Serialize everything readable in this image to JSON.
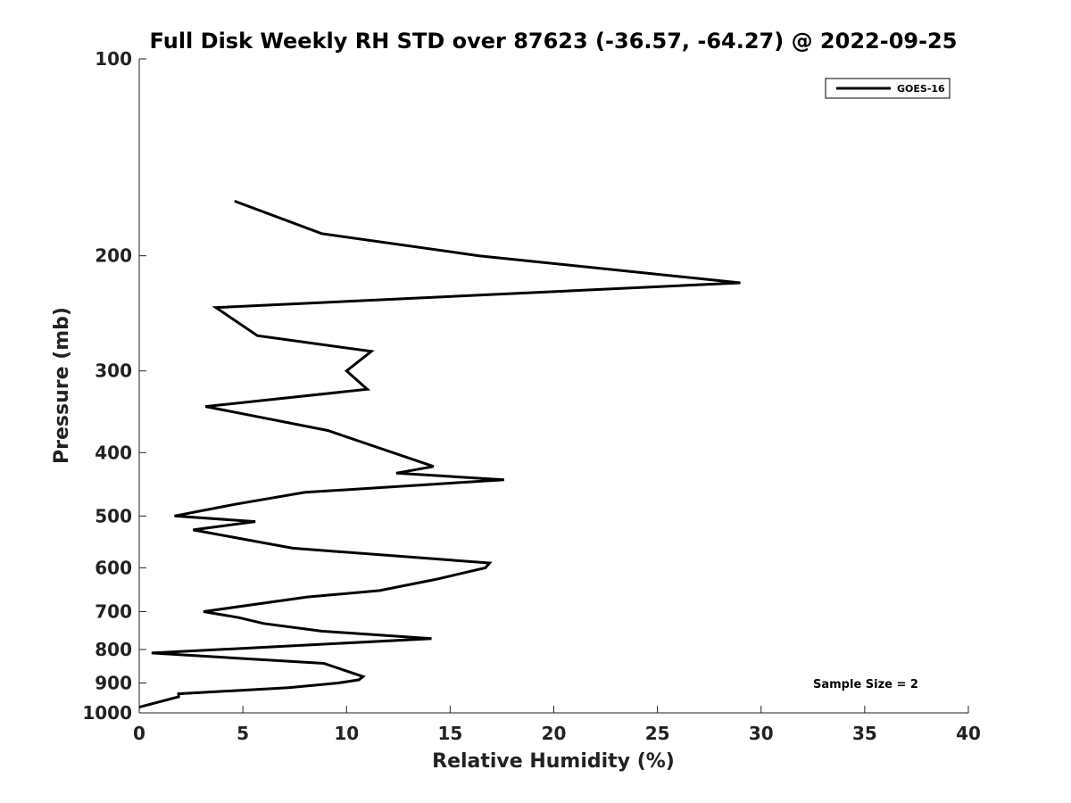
{
  "chart_data": {
    "type": "line",
    "title": "Full Disk Weekly RH STD over 87623 (-36.57, -64.27) @ 2022-09-25",
    "xlabel": "Relative Humidity (%)",
    "ylabel": "Pressure (mb)",
    "xlim": [
      0,
      40
    ],
    "ylim": [
      100,
      1000
    ],
    "y_scale": "log",
    "y_reversed": true,
    "x_ticks": [
      "0",
      "5",
      "10",
      "15",
      "20",
      "25",
      "30",
      "35",
      "40"
    ],
    "y_ticks": [
      "100",
      "200",
      "300",
      "400",
      "500",
      "600",
      "700",
      "800",
      "900",
      "1000"
    ],
    "grid": false,
    "legend_position": "top-right",
    "annotation": "Sample Size = 2",
    "series": [
      {
        "name": "GOES-16",
        "color": "#000000",
        "x": [
          4.6,
          8.8,
          16.4,
          29.0,
          3.7,
          5.7,
          11.2,
          10.0,
          11.0,
          3.2,
          9.1,
          14.2,
          12.4,
          17.6,
          8.0,
          4.6,
          1.7,
          5.6,
          2.6,
          7.4,
          16.9,
          16.7,
          14.3,
          11.6,
          8.1,
          3.1,
          4.8,
          6.0,
          8.8,
          14.1,
          0.6,
          8.9,
          10.8,
          10.6,
          9.6,
          7.2,
          1.9,
          1.9,
          0.0
        ],
        "y": [
          165,
          185,
          200,
          220,
          240,
          265,
          280,
          300,
          320,
          340,
          370,
          420,
          430,
          440,
          460,
          480,
          500,
          510,
          525,
          560,
          590,
          600,
          625,
          650,
          665,
          700,
          715,
          730,
          750,
          770,
          810,
          840,
          880,
          890,
          900,
          915,
          935,
          945,
          980
        ]
      }
    ]
  }
}
